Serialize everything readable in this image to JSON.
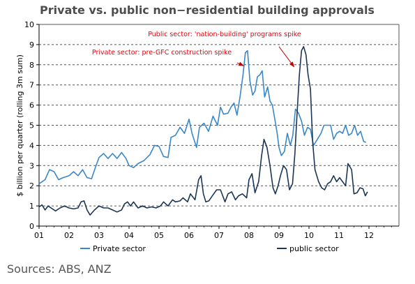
{
  "chart_data": {
    "type": "line",
    "title": "Private vs. public non−residential building approvals",
    "ylabel": "$ billion per quarter (rolling 3m sum)",
    "xlabel": "",
    "ylim": [
      0,
      10
    ],
    "yticks": [
      "0",
      "1",
      "2",
      "3",
      "4",
      "5",
      "6",
      "7",
      "8",
      "9",
      "10"
    ],
    "xlim": [
      2001,
      2013
    ],
    "xticks": [
      {
        "x": 2001,
        "label": "01"
      },
      {
        "x": 2002,
        "label": "02"
      },
      {
        "x": 2003,
        "label": "03"
      },
      {
        "x": 2004,
        "label": "04"
      },
      {
        "x": 2005,
        "label": "05"
      },
      {
        "x": 2006,
        "label": "06"
      },
      {
        "x": 2007,
        "label": "07"
      },
      {
        "x": 2008,
        "label": "08"
      },
      {
        "x": 2009,
        "label": "09"
      },
      {
        "x": 2010,
        "label": "10"
      },
      {
        "x": 2011,
        "label": "11"
      },
      {
        "x": 2012,
        "label": "12"
      }
    ],
    "grid": "horizontal-dashed",
    "legend": "bottom",
    "series": [
      {
        "name": "Private sector",
        "color": "#3a87c8",
        "points": [
          [
            2001.0,
            2.1
          ],
          [
            2001.2,
            2.3
          ],
          [
            2001.35,
            2.8
          ],
          [
            2001.5,
            2.7
          ],
          [
            2001.65,
            2.3
          ],
          [
            2001.8,
            2.4
          ],
          [
            2002.0,
            2.5
          ],
          [
            2002.15,
            2.7
          ],
          [
            2002.3,
            2.5
          ],
          [
            2002.45,
            2.8
          ],
          [
            2002.6,
            2.4
          ],
          [
            2002.75,
            2.35
          ],
          [
            2002.9,
            3.0
          ],
          [
            2003.0,
            3.4
          ],
          [
            2003.15,
            3.6
          ],
          [
            2003.3,
            3.35
          ],
          [
            2003.45,
            3.6
          ],
          [
            2003.6,
            3.35
          ],
          [
            2003.75,
            3.65
          ],
          [
            2003.9,
            3.35
          ],
          [
            2004.0,
            3.0
          ],
          [
            2004.15,
            2.9
          ],
          [
            2004.3,
            3.1
          ],
          [
            2004.5,
            3.25
          ],
          [
            2004.7,
            3.55
          ],
          [
            2004.85,
            4.0
          ],
          [
            2005.0,
            3.95
          ],
          [
            2005.15,
            3.45
          ],
          [
            2005.3,
            3.4
          ],
          [
            2005.4,
            4.4
          ],
          [
            2005.55,
            4.5
          ],
          [
            2005.7,
            4.9
          ],
          [
            2005.85,
            4.6
          ],
          [
            2006.0,
            5.3
          ],
          [
            2006.1,
            4.6
          ],
          [
            2006.25,
            3.9
          ],
          [
            2006.35,
            4.9
          ],
          [
            2006.5,
            5.1
          ],
          [
            2006.65,
            4.7
          ],
          [
            2006.8,
            5.45
          ],
          [
            2006.95,
            5.0
          ],
          [
            2007.05,
            5.9
          ],
          [
            2007.15,
            5.55
          ],
          [
            2007.3,
            5.6
          ],
          [
            2007.4,
            5.9
          ],
          [
            2007.5,
            6.1
          ],
          [
            2007.6,
            5.5
          ],
          [
            2007.7,
            6.4
          ],
          [
            2007.8,
            7.5
          ],
          [
            2007.88,
            8.6
          ],
          [
            2007.95,
            8.7
          ],
          [
            2008.03,
            7.2
          ],
          [
            2008.12,
            6.5
          ],
          [
            2008.2,
            6.7
          ],
          [
            2008.28,
            7.4
          ],
          [
            2008.36,
            7.5
          ],
          [
            2008.44,
            7.7
          ],
          [
            2008.52,
            6.4
          ],
          [
            2008.62,
            6.9
          ],
          [
            2008.7,
            6.2
          ],
          [
            2008.78,
            6.0
          ],
          [
            2008.86,
            5.3
          ],
          [
            2008.94,
            4.6
          ],
          [
            2009.0,
            3.9
          ],
          [
            2009.08,
            3.5
          ],
          [
            2009.18,
            3.7
          ],
          [
            2009.28,
            4.6
          ],
          [
            2009.38,
            4.0
          ],
          [
            2009.46,
            4.5
          ],
          [
            2009.55,
            5.8
          ],
          [
            2009.65,
            5.6
          ],
          [
            2009.75,
            5.2
          ],
          [
            2009.85,
            4.5
          ],
          [
            2009.95,
            4.9
          ],
          [
            2010.05,
            4.8
          ],
          [
            2010.15,
            4.0
          ],
          [
            2010.28,
            4.3
          ],
          [
            2010.4,
            4.6
          ],
          [
            2010.5,
            5.0
          ],
          [
            2010.62,
            5.0
          ],
          [
            2010.72,
            5.0
          ],
          [
            2010.82,
            4.3
          ],
          [
            2010.92,
            4.6
          ],
          [
            2011.02,
            4.7
          ],
          [
            2011.12,
            4.6
          ],
          [
            2011.22,
            5.0
          ],
          [
            2011.32,
            4.5
          ],
          [
            2011.42,
            4.6
          ],
          [
            2011.52,
            5.0
          ],
          [
            2011.62,
            4.5
          ],
          [
            2011.72,
            4.7
          ],
          [
            2011.82,
            4.2
          ],
          [
            2011.9,
            4.15
          ]
        ]
      },
      {
        "name": "public sector",
        "color": "#1b3554",
        "points": [
          [
            2001.0,
            0.95
          ],
          [
            2001.1,
            1.05
          ],
          [
            2001.2,
            0.8
          ],
          [
            2001.3,
            1.0
          ],
          [
            2001.4,
            0.9
          ],
          [
            2001.55,
            0.75
          ],
          [
            2001.7,
            0.9
          ],
          [
            2001.85,
            1.0
          ],
          [
            2002.0,
            0.9
          ],
          [
            2002.15,
            0.85
          ],
          [
            2002.3,
            0.9
          ],
          [
            2002.4,
            1.2
          ],
          [
            2002.5,
            1.25
          ],
          [
            2002.6,
            0.8
          ],
          [
            2002.7,
            0.55
          ],
          [
            2002.85,
            0.8
          ],
          [
            2003.0,
            1.0
          ],
          [
            2003.15,
            0.9
          ],
          [
            2003.3,
            0.9
          ],
          [
            2003.45,
            0.8
          ],
          [
            2003.6,
            0.7
          ],
          [
            2003.75,
            0.8
          ],
          [
            2003.85,
            1.1
          ],
          [
            2003.95,
            1.2
          ],
          [
            2004.05,
            1.0
          ],
          [
            2004.15,
            1.2
          ],
          [
            2004.3,
            0.9
          ],
          [
            2004.45,
            1.0
          ],
          [
            2004.6,
            0.9
          ],
          [
            2004.75,
            0.95
          ],
          [
            2004.9,
            0.9
          ],
          [
            2005.05,
            1.0
          ],
          [
            2005.15,
            1.2
          ],
          [
            2005.3,
            1.0
          ],
          [
            2005.45,
            1.3
          ],
          [
            2005.55,
            1.2
          ],
          [
            2005.7,
            1.25
          ],
          [
            2005.8,
            1.4
          ],
          [
            2005.95,
            1.2
          ],
          [
            2006.05,
            1.6
          ],
          [
            2006.2,
            1.3
          ],
          [
            2006.32,
            2.3
          ],
          [
            2006.4,
            2.5
          ],
          [
            2006.48,
            1.6
          ],
          [
            2006.56,
            1.2
          ],
          [
            2006.66,
            1.25
          ],
          [
            2006.78,
            1.5
          ],
          [
            2006.92,
            1.8
          ],
          [
            2007.05,
            1.8
          ],
          [
            2007.2,
            1.2
          ],
          [
            2007.3,
            1.6
          ],
          [
            2007.42,
            1.7
          ],
          [
            2007.55,
            1.3
          ],
          [
            2007.65,
            1.5
          ],
          [
            2007.78,
            1.6
          ],
          [
            2007.92,
            1.4
          ],
          [
            2008.0,
            2.3
          ],
          [
            2008.1,
            2.6
          ],
          [
            2008.2,
            1.65
          ],
          [
            2008.32,
            2.2
          ],
          [
            2008.42,
            3.5
          ],
          [
            2008.5,
            4.3
          ],
          [
            2008.6,
            3.9
          ],
          [
            2008.7,
            3.0
          ],
          [
            2008.8,
            1.9
          ],
          [
            2008.88,
            1.6
          ],
          [
            2008.97,
            2.0
          ],
          [
            2009.05,
            2.5
          ],
          [
            2009.15,
            3.0
          ],
          [
            2009.25,
            2.8
          ],
          [
            2009.35,
            1.8
          ],
          [
            2009.45,
            2.1
          ],
          [
            2009.53,
            3.6
          ],
          [
            2009.6,
            5.5
          ],
          [
            2009.68,
            7.5
          ],
          [
            2009.75,
            8.7
          ],
          [
            2009.82,
            8.9
          ],
          [
            2009.9,
            8.5
          ],
          [
            2009.97,
            7.5
          ],
          [
            2010.05,
            6.8
          ],
          [
            2010.12,
            4.2
          ],
          [
            2010.2,
            2.8
          ],
          [
            2010.32,
            2.2
          ],
          [
            2010.42,
            1.9
          ],
          [
            2010.52,
            1.8
          ],
          [
            2010.62,
            2.1
          ],
          [
            2010.72,
            2.2
          ],
          [
            2010.82,
            2.5
          ],
          [
            2010.92,
            2.2
          ],
          [
            2011.02,
            2.4
          ],
          [
            2011.12,
            2.2
          ],
          [
            2011.22,
            2.0
          ],
          [
            2011.3,
            3.1
          ],
          [
            2011.42,
            2.8
          ],
          [
            2011.5,
            1.6
          ],
          [
            2011.6,
            1.65
          ],
          [
            2011.7,
            1.9
          ],
          [
            2011.8,
            1.85
          ],
          [
            2011.88,
            1.5
          ],
          [
            2011.95,
            1.7
          ]
        ]
      }
    ],
    "annotations": [
      {
        "text": "Public sector: 'nation-building' programs spike",
        "arrow_from": [
          2009.0,
          8.9
        ],
        "arrow_to": [
          2009.5,
          7.9
        ]
      },
      {
        "text": "Private sector: pre-GFC construction spike",
        "arrow_from": [
          2007.6,
          8.1
        ],
        "arrow_to": [
          2007.82,
          7.95
        ]
      }
    ]
  },
  "source_text": "Sources: ABS, ANZ"
}
